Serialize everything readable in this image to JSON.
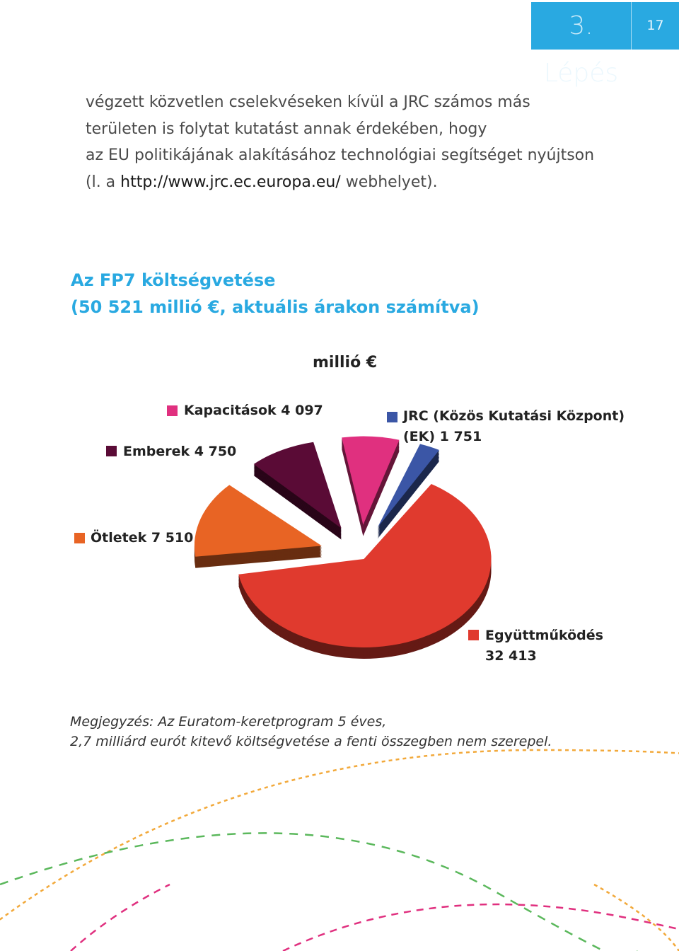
{
  "header": {
    "step": "3. Lépés",
    "page_number": "17"
  },
  "intro": {
    "line1": "végzett közvetlen cselekvéseken kívül a JRC számos más",
    "line2": "területen is folytat kutatást annak érdekében, hogy",
    "line3": "az EU politikájának alakításához technológiai segítséget nyújtson",
    "line4_prefix": "(l. a ",
    "line4_url": "http://www.jrc.ec.europa.eu/",
    "line4_suffix": " webhelyet)."
  },
  "chart_data": {
    "type": "pie",
    "title": "Az FP7 költségvetése",
    "subtitle": "(50 521 millió €, aktuális árakon számítva)",
    "unit_label": "millió €",
    "slices": [
      {
        "name": "Együttműködés",
        "value": 32413,
        "color": "#e03a2e",
        "label_line1": "Együttműködés",
        "label_line2": "32 413"
      },
      {
        "name": "Ötletek",
        "value": 7510,
        "color": "#e86424",
        "label_line1": "Ötletek 7 510"
      },
      {
        "name": "Emberek",
        "value": 4750,
        "color": "#5a0b36",
        "label_line1": "Emberek 4 750"
      },
      {
        "name": "Kapacitások",
        "value": 4097,
        "color": "#e0307f",
        "label_line1": "Kapacitások 4 097"
      },
      {
        "name": "JRC (Közös Kutatási Központ) (EK)",
        "value": 1751,
        "color": "#3b56a6",
        "label_line1": "JRC (Közös Kutatási Központ)",
        "label_line2": "(EK) 1 751"
      }
    ]
  },
  "note": {
    "line1": "Megjegyzés: Az Euratom-keretprogram 5 éves,",
    "line2": "2,7 milliárd eurót kitevő költségvetése a fenti összegben nem szerepel."
  },
  "decoration": {
    "orange_dash": "#f2a93b",
    "green_dash": "#5bb85c",
    "pink_dash": "#e0307f"
  }
}
